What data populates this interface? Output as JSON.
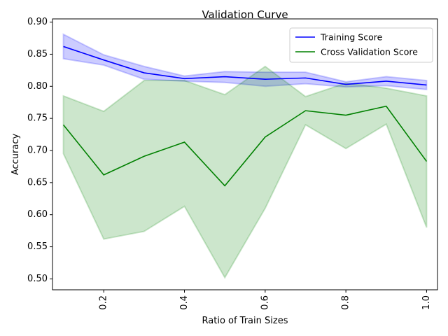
{
  "chart_data": {
    "type": "line",
    "title": "Validation Curve",
    "xlabel": "Ratio of Train Sizes",
    "ylabel": "Accuracy",
    "xlim": [
      0.073,
      1.027
    ],
    "ylim": [
      0.483,
      0.905
    ],
    "x_ticks": [
      0.2,
      0.4,
      0.6,
      0.8,
      1.0
    ],
    "x_tick_labels": [
      "0.2",
      "0.4",
      "0.6",
      "0.8",
      "1.0"
    ],
    "y_ticks": [
      0.5,
      0.55,
      0.6,
      0.65,
      0.7,
      0.75,
      0.8,
      0.85,
      0.9
    ],
    "y_tick_labels": [
      "0.50",
      "0.55",
      "0.60",
      "0.65",
      "0.70",
      "0.75",
      "0.80",
      "0.85",
      "0.90"
    ],
    "x": [
      0.1,
      0.2,
      0.3,
      0.4,
      0.5,
      0.6,
      0.7,
      0.8,
      0.9,
      1.0
    ],
    "legend_position": "top-right",
    "grid": false,
    "series": [
      {
        "name": "Training Score",
        "color": "#0000ff",
        "band_color": "#0000ff",
        "values": [
          0.862,
          0.841,
          0.821,
          0.812,
          0.815,
          0.811,
          0.813,
          0.803,
          0.808,
          0.802
        ],
        "upper": [
          0.881,
          0.849,
          0.831,
          0.816,
          0.823,
          0.822,
          0.822,
          0.807,
          0.815,
          0.809
        ],
        "lower": [
          0.843,
          0.833,
          0.811,
          0.808,
          0.806,
          0.8,
          0.804,
          0.799,
          0.801,
          0.795
        ]
      },
      {
        "name": "Cross Validation Score",
        "color": "#008000",
        "band_color": "#008000",
        "values": [
          0.74,
          0.662,
          0.691,
          0.713,
          0.645,
          0.721,
          0.762,
          0.755,
          0.769,
          0.683
        ],
        "upper": [
          0.785,
          0.761,
          0.809,
          0.809,
          0.787,
          0.831,
          0.784,
          0.805,
          0.797,
          0.785
        ],
        "lower": [
          0.695,
          0.562,
          0.574,
          0.613,
          0.502,
          0.61,
          0.74,
          0.703,
          0.741,
          0.58
        ]
      }
    ]
  }
}
